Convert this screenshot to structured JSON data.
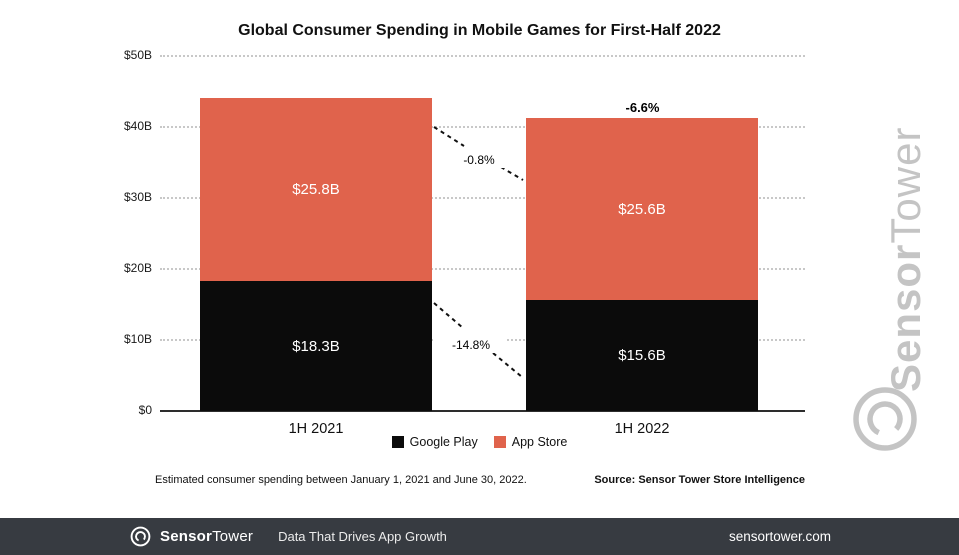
{
  "title": "Global Consumer Spending in Mobile Games for First-Half 2022",
  "chart_data": {
    "type": "bar",
    "stacked": true,
    "categories": [
      "1H 2021",
      "1H 2022"
    ],
    "series": [
      {
        "name": "Google Play",
        "color": "#0b0b0b",
        "values": [
          18.3,
          15.6
        ],
        "labels": [
          "$18.3B",
          "$15.6B"
        ]
      },
      {
        "name": "App Store",
        "color": "#E0634C",
        "values": [
          25.8,
          25.6
        ],
        "labels": [
          "$25.8B",
          "$25.6B"
        ]
      }
    ],
    "ylim": [
      0,
      50
    ],
    "yticks": [
      "$0",
      "$10B",
      "$20B",
      "$30B",
      "$40B",
      "$50B"
    ],
    "grid": "dotted-horizontal",
    "legend_position": "bottom",
    "annotations": [
      {
        "target": "app-store-change",
        "text": "-0.8%"
      },
      {
        "target": "google-play-change",
        "text": "-14.8%"
      },
      {
        "target": "total-change",
        "text": "-6.6%"
      }
    ]
  },
  "footnote": "Estimated consumer spending between January 1, 2021 and June 30, 2022.",
  "source": "Source: Sensor Tower Store Intelligence",
  "watermark": {
    "part1": "Sensor",
    "part2": "Tower"
  },
  "footer": {
    "brand_part1": "Sensor",
    "brand_part2": "Tower",
    "tagline": "Data That Drives App Growth",
    "website": "sensortower.com"
  },
  "colors": {
    "app_store": "#E0634C",
    "google_play": "#0b0b0b",
    "footer_bg": "#373B41",
    "watermark": "#c4c4c4"
  }
}
